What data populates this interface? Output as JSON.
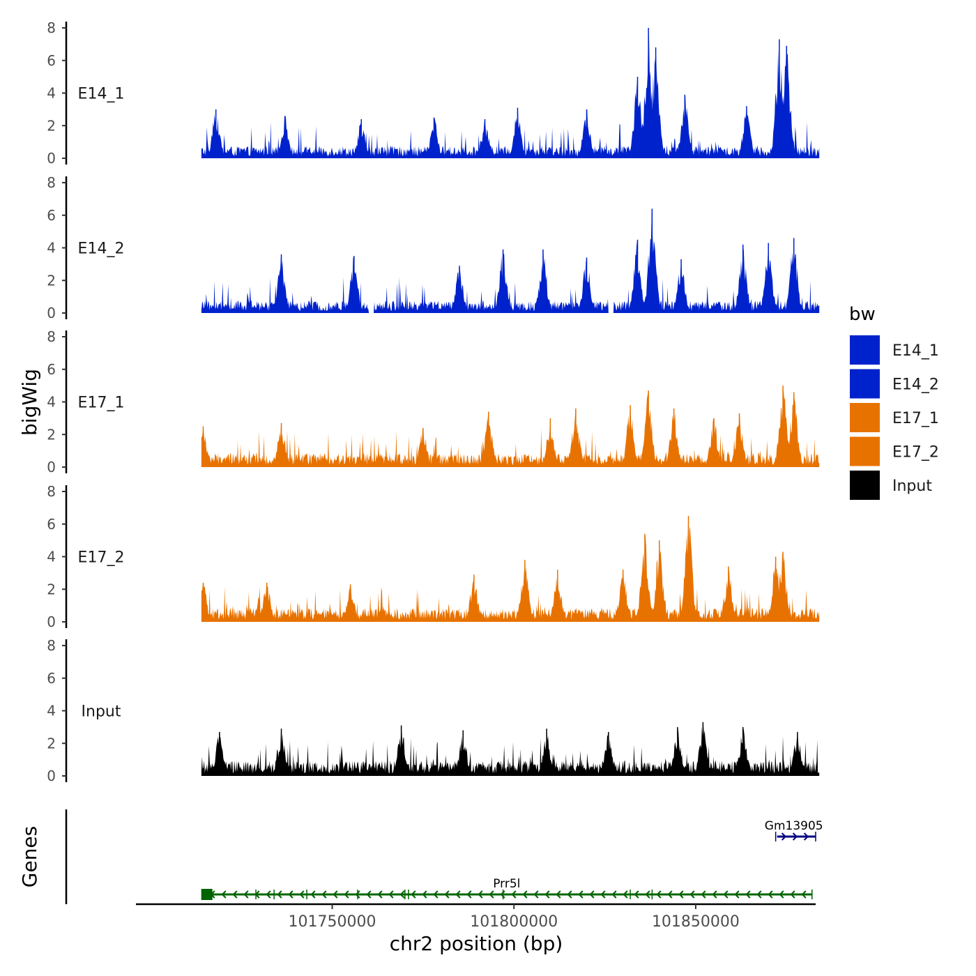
{
  "chart_data": {
    "type": "area",
    "chromosome": "chr2",
    "xlabel": "chr2 position (bp)",
    "ylabel_tracks": "bigWig",
    "ylabel_genes": "Genes",
    "xlim": [
      101696000,
      101883000
    ],
    "data_range": [
      101714000,
      101884000
    ],
    "x_ticks": [
      101750000,
      101800000,
      101850000
    ],
    "x_tick_labels": [
      "101750000",
      "101800000",
      "101850000"
    ],
    "ylim": [
      0,
      8
    ],
    "y_ticks": [
      0,
      2,
      4,
      6,
      8
    ],
    "y_tick_labels": [
      "0",
      "2",
      "4",
      "6",
      "8"
    ],
    "series": [
      {
        "name": "E14_1",
        "color": "#0022CC",
        "baseline_mean": 0.8,
        "peaks": [
          {
            "x": 101718000,
            "y": 3.0
          },
          {
            "x": 101737000,
            "y": 2.6
          },
          {
            "x": 101758000,
            "y": 2.4
          },
          {
            "x": 101778000,
            "y": 2.5
          },
          {
            "x": 101792000,
            "y": 2.4
          },
          {
            "x": 101801000,
            "y": 3.1
          },
          {
            "x": 101820000,
            "y": 3.0
          },
          {
            "x": 101834000,
            "y": 5.0
          },
          {
            "x": 101837000,
            "y": 8.0
          },
          {
            "x": 101839000,
            "y": 6.8
          },
          {
            "x": 101847000,
            "y": 3.9
          },
          {
            "x": 101864000,
            "y": 3.2
          },
          {
            "x": 101873000,
            "y": 7.3
          },
          {
            "x": 101875000,
            "y": 6.9
          }
        ]
      },
      {
        "name": "E14_2",
        "color": "#0022CC",
        "baseline_mean": 0.8,
        "peaks": [
          {
            "x": 101736000,
            "y": 3.6
          },
          {
            "x": 101756000,
            "y": 3.5
          },
          {
            "x": 101785000,
            "y": 2.9
          },
          {
            "x": 101797000,
            "y": 3.9
          },
          {
            "x": 101808000,
            "y": 3.9
          },
          {
            "x": 101820000,
            "y": 3.4
          },
          {
            "x": 101834000,
            "y": 4.5
          },
          {
            "x": 101838000,
            "y": 6.4
          },
          {
            "x": 101846000,
            "y": 3.3
          },
          {
            "x": 101863000,
            "y": 4.2
          },
          {
            "x": 101870000,
            "y": 4.3
          },
          {
            "x": 101877000,
            "y": 4.6
          }
        ],
        "gaps": [
          [
            101760000,
            101761500
          ],
          [
            101826000,
            101827500
          ]
        ]
      },
      {
        "name": "E17_1",
        "color": "#E87200",
        "baseline_mean": 0.9,
        "peaks": [
          {
            "x": 101714500,
            "y": 2.5
          },
          {
            "x": 101736000,
            "y": 2.7
          },
          {
            "x": 101775000,
            "y": 2.4
          },
          {
            "x": 101793000,
            "y": 3.4
          },
          {
            "x": 101810000,
            "y": 3.0
          },
          {
            "x": 101817000,
            "y": 3.6
          },
          {
            "x": 101832000,
            "y": 3.8
          },
          {
            "x": 101837000,
            "y": 4.7
          },
          {
            "x": 101844000,
            "y": 3.6
          },
          {
            "x": 101855000,
            "y": 3.0
          },
          {
            "x": 101862000,
            "y": 3.3
          },
          {
            "x": 101874000,
            "y": 5.0
          },
          {
            "x": 101877000,
            "y": 4.6
          }
        ]
      },
      {
        "name": "E17_2",
        "color": "#E87200",
        "baseline_mean": 0.9,
        "peaks": [
          {
            "x": 101714500,
            "y": 2.4
          },
          {
            "x": 101732000,
            "y": 2.4
          },
          {
            "x": 101755000,
            "y": 2.3
          },
          {
            "x": 101789000,
            "y": 2.9
          },
          {
            "x": 101803000,
            "y": 3.8
          },
          {
            "x": 101812000,
            "y": 3.2
          },
          {
            "x": 101830000,
            "y": 3.2
          },
          {
            "x": 101836000,
            "y": 5.4
          },
          {
            "x": 101840000,
            "y": 5.0
          },
          {
            "x": 101848000,
            "y": 6.5
          },
          {
            "x": 101859000,
            "y": 3.4
          },
          {
            "x": 101872000,
            "y": 4.0
          },
          {
            "x": 101874000,
            "y": 4.3
          }
        ]
      },
      {
        "name": "Input",
        "color": "#000000",
        "baseline_mean": 1.0,
        "peaks": [
          {
            "x": 101719000,
            "y": 2.7
          },
          {
            "x": 101736000,
            "y": 2.9
          },
          {
            "x": 101769000,
            "y": 3.1
          },
          {
            "x": 101786000,
            "y": 2.8
          },
          {
            "x": 101809000,
            "y": 2.9
          },
          {
            "x": 101826000,
            "y": 2.7
          },
          {
            "x": 101845000,
            "y": 3.0
          },
          {
            "x": 101852000,
            "y": 3.3
          },
          {
            "x": 101863000,
            "y": 3.0
          },
          {
            "x": 101878000,
            "y": 2.7
          }
        ]
      }
    ],
    "legend": {
      "title": "bw",
      "position": "right",
      "items": [
        {
          "label": "E14_1",
          "color": "#0022CC"
        },
        {
          "label": "E14_2",
          "color": "#0022CC"
        },
        {
          "label": "E17_1",
          "color": "#E87200"
        },
        {
          "label": "E17_2",
          "color": "#E87200"
        },
        {
          "label": "Input",
          "color": "#000000"
        }
      ]
    },
    "genes": [
      {
        "name": "Prr5l",
        "strand": "-",
        "color": "#006400",
        "start": 101714000,
        "end": 101882000,
        "tss": 101715500,
        "exons": [
          101729000,
          101734000,
          101743000,
          101757000,
          101770000,
          101771000,
          101797000,
          101832000,
          101838000,
          101882000
        ]
      },
      {
        "name": "Gm13905",
        "strand": "+",
        "color": "#000080",
        "start": 101872000,
        "end": 101883000,
        "exons": [
          101872000,
          101883000
        ]
      }
    ]
  }
}
